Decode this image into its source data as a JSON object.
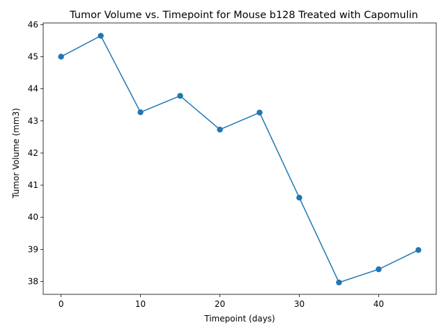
{
  "chart_data": {
    "type": "line",
    "title": "Tumor Volume vs. Timepoint for Mouse b128 Treated with Capomulin",
    "xlabel": "Timepoint (days)",
    "ylabel": "Tumor Volume (mm3)",
    "x": [
      0,
      5,
      10,
      15,
      20,
      25,
      30,
      35,
      40,
      45
    ],
    "series": [
      {
        "values": [
          45.0,
          45.65,
          43.27,
          43.78,
          42.73,
          43.26,
          40.61,
          37.97,
          38.38,
          38.98
        ],
        "color": "#1f77b4",
        "marker": "circle"
      }
    ],
    "xlim": [
      -2.25,
      47.25
    ],
    "ylim": [
      37.6,
      46.05
    ],
    "xticks": [
      0,
      10,
      20,
      30,
      40
    ],
    "yticks": [
      38,
      39,
      40,
      41,
      42,
      43,
      44,
      45,
      46
    ],
    "grid": false,
    "legend": "none"
  }
}
